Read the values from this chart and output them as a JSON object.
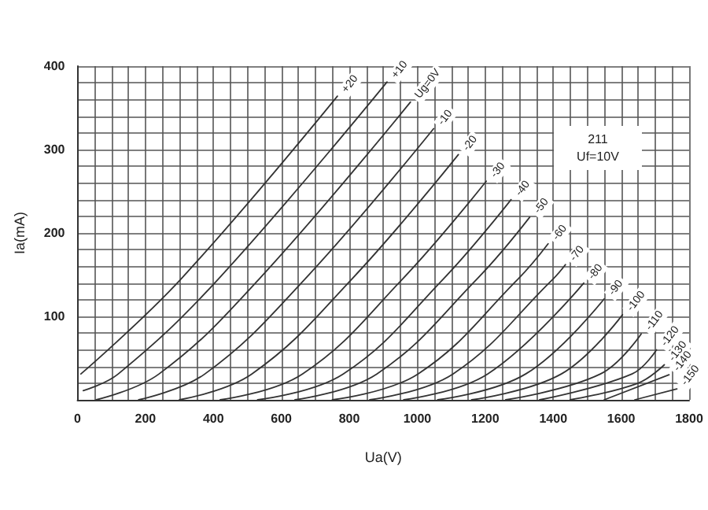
{
  "chart_data": {
    "type": "line",
    "xlabel": "Ua(V)",
    "ylabel": "Ia(mA)",
    "annotations": [
      "211",
      "Uf=10V"
    ],
    "grid": true,
    "line_style": "solid",
    "xlim": [
      0,
      1800
    ],
    "ylim": [
      0,
      400
    ],
    "xticks": [
      0,
      {
        "value": 50,
        "label": null
      },
      {
        "value": 100,
        "label": null
      },
      {
        "value": 150,
        "label": null
      },
      200,
      {
        "value": 250,
        "label": null
      },
      {
        "value": 300,
        "label": null
      },
      {
        "value": 350,
        "label": null
      },
      400,
      {
        "value": 450,
        "label": null
      },
      {
        "value": 500,
        "label": null
      },
      {
        "value": 550,
        "label": null
      },
      600,
      {
        "value": 650,
        "label": null
      },
      {
        "value": 700,
        "label": null
      },
      {
        "value": 750,
        "label": null
      },
      800,
      {
        "value": 850,
        "label": null
      },
      {
        "value": 900,
        "label": null
      },
      {
        "value": 950,
        "label": null
      },
      1000,
      {
        "value": 1050,
        "label": null
      },
      {
        "value": 1100,
        "label": null
      },
      {
        "value": 1150,
        "label": null
      },
      1200,
      {
        "value": 1250,
        "label": null
      },
      {
        "value": 1300,
        "label": null
      },
      {
        "value": 1350,
        "label": null
      },
      1400,
      {
        "value": 1450,
        "label": null
      },
      {
        "value": 1500,
        "label": null
      },
      {
        "value": 1550,
        "label": null
      },
      1600,
      {
        "value": 1650,
        "label": null
      },
      {
        "value": 1700,
        "label": null
      },
      {
        "value": 1750,
        "label": null
      },
      1800
    ],
    "yticks": [
      {
        "value": 0,
        "label": null
      },
      {
        "value": 20,
        "label": null
      },
      {
        "value": 40,
        "label": null
      },
      {
        "value": 60,
        "label": null
      },
      {
        "value": 80,
        "label": null
      },
      100,
      {
        "value": 120,
        "label": null
      },
      {
        "value": 140,
        "label": null
      },
      {
        "value": 160,
        "label": null
      },
      {
        "value": 180,
        "label": null
      },
      200,
      {
        "value": 220,
        "label": null
      },
      {
        "value": 240,
        "label": null
      },
      {
        "value": 260,
        "label": null
      },
      {
        "value": 280,
        "label": null
      },
      300,
      {
        "value": 320,
        "label": null
      },
      {
        "value": 340,
        "label": null
      },
      {
        "value": 360,
        "label": null
      },
      {
        "value": 380,
        "label": null
      },
      400
    ],
    "series": [
      {
        "name": "+20",
        "color": "#333333",
        "x": [
          10,
          305,
          765
        ],
        "values": [
          31,
          145,
          364
        ]
      },
      {
        "name": "+10",
        "color": "#333333",
        "x": [
          17,
          120,
          415,
          911
        ],
        "values": [
          11,
          31,
          145,
          381
        ]
      },
      {
        "name": "Ug=0V",
        "color": "#333333",
        "x": [
          55,
          240,
          535,
          980
        ],
        "values": [
          0,
          31,
          145,
          357
        ]
      },
      {
        "name": "-10",
        "color": "#333333",
        "x": [
          180,
          375,
          670,
          1048
        ],
        "values": [
          0,
          31,
          145,
          325
        ]
      },
      {
        "name": "-20",
        "color": "#333333",
        "x": [
          300,
          513,
          808,
          1121
        ],
        "values": [
          0,
          31,
          145,
          294
        ]
      },
      {
        "name": "-30",
        "color": "#333333",
        "x": [
          420,
          662,
          957,
          1203
        ],
        "values": [
          0,
          31,
          145,
          262
        ]
      },
      {
        "name": "-40",
        "color": "#333333",
        "x": [
          530,
          782,
          1077,
          1276
        ],
        "values": [
          0,
          31,
          145,
          240
        ]
      },
      {
        "name": "-50",
        "color": "#333333",
        "x": [
          640,
          881,
          1176,
          1331
        ],
        "values": [
          0,
          31,
          145,
          219
        ]
      },
      {
        "name": "-60",
        "color": "#333333",
        "x": [
          750,
          1002,
          1297,
          1385
        ],
        "values": [
          0,
          31,
          145,
          187
        ]
      },
      {
        "name": "-70",
        "color": "#333333",
        "x": [
          860,
          1105,
          1400,
          1436
        ],
        "values": [
          0,
          31,
          145,
          162
        ]
      },
      {
        "name": "-80",
        "color": "#333333",
        "x": [
          960,
          1207,
          1490
        ],
        "values": [
          0,
          31,
          140
        ]
      },
      {
        "name": "-90",
        "color": "#333333",
        "x": [
          1060,
          1319,
          1550
        ],
        "values": [
          0,
          31,
          121
        ]
      },
      {
        "name": "-100",
        "color": "#333333",
        "x": [
          1160,
          1424,
          1604
        ],
        "values": [
          0,
          31,
          102
        ]
      },
      {
        "name": "-110",
        "color": "#333333",
        "x": [
          1260,
          1539,
          1659
        ],
        "values": [
          0,
          31,
          79
        ]
      },
      {
        "name": "-120",
        "color": "#333333",
        "x": [
          1360,
          1632,
          1704
        ],
        "values": [
          0,
          31,
          60
        ]
      },
      {
        "name": "-130",
        "color": "#333333",
        "x": [
          1450,
          1650,
          1727
        ],
        "values": [
          0,
          20,
          42
        ]
      },
      {
        "name": "-140",
        "color": "#333333",
        "x": [
          1550,
          1741
        ],
        "values": [
          0,
          30
        ]
      },
      {
        "name": "-150",
        "color": "#333333",
        "x": [
          1640,
          1764
        ],
        "values": [
          0,
          13
        ]
      }
    ]
  }
}
